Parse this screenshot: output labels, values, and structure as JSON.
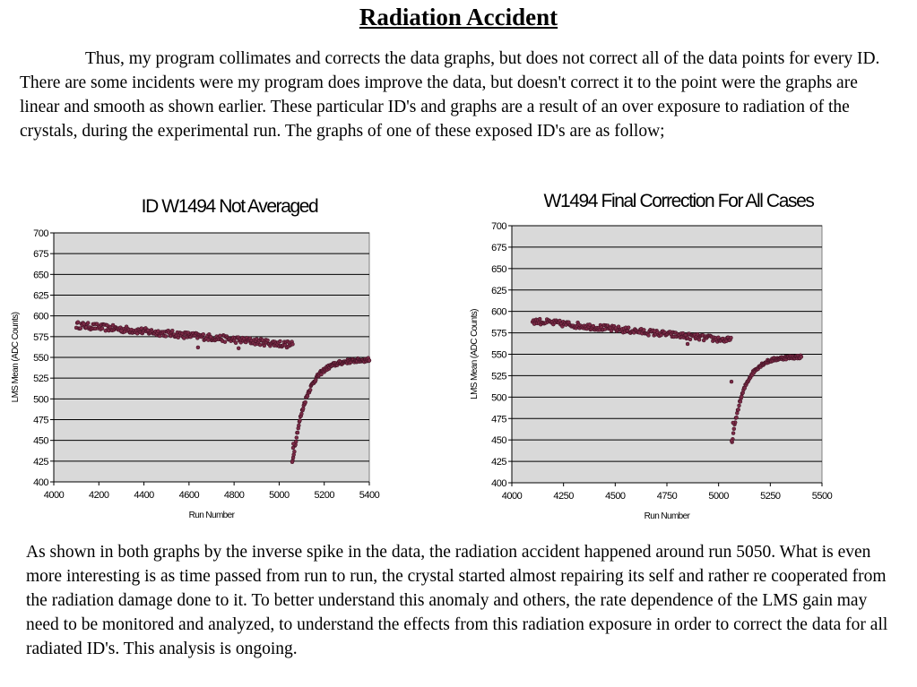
{
  "page": {
    "title": "Radiation Accident",
    "para1": "Thus, my program collimates and corrects the data graphs,  but does not correct all of the data points for every ID.  There are some incidents were my program does improve the data, but doesn't correct it to the point were the graphs are linear and smooth as shown earlier.  These particular ID's and graphs are a result of an over exposure to radiation of the crystals, during the experimental run.  The graphs of one of these exposed ID's are as follow;",
    "para2": "As shown in both graphs by the inverse spike in the data, the radiation accident happened around run 5050.  What is even more interesting is as time passed from run to run, the crystal started almost repairing its self and rather re cooperated from the radiation damage done to it.  To better understand this anomaly and others, the rate dependence of the LMS gain may need to be monitored and analyzed, to understand the effects from this radiation exposure in order to correct the data for all radiated ID's.  This analysis is ongoing."
  },
  "chart_data": [
    {
      "type": "scatter",
      "title": "ID W1494 Not Averaged",
      "xlabel": "Run Number",
      "ylabel": "LMS Mean (ADC Counts)",
      "xlim": [
        4000,
        5400
      ],
      "ylim": [
        400,
        700
      ],
      "xticks": [
        4000,
        4200,
        4400,
        4600,
        4800,
        5000,
        5200,
        5400
      ],
      "yticks": [
        400,
        425,
        450,
        475,
        500,
        525,
        550,
        575,
        600,
        625,
        650,
        675,
        700
      ],
      "grid": "horizontal",
      "background": "#d9d9d9",
      "marker_color": "#7a2a46",
      "segments": [
        {
          "x0": 4100,
          "x1": 5060,
          "y0": 589,
          "y1": 565,
          "n": 260,
          "jitter": 4
        },
        {
          "x0": 5060,
          "x1": 5400,
          "y0": 425,
          "y1": 547,
          "n": 140,
          "curve": "recovery",
          "jitter": 2.5
        }
      ],
      "outliers": [
        [
          5058,
          424
        ],
        [
          5062,
          441
        ],
        [
          5063,
          446
        ],
        [
          4640,
          562
        ],
        [
          4820,
          561
        ],
        [
          4300,
          582
        ]
      ]
    },
    {
      "type": "scatter",
      "title": "W1494 Final Correction For All Cases",
      "xlabel": "Run Number",
      "ylabel": "LMS Mean (ADC Counts)",
      "xlim": [
        4000,
        5500
      ],
      "ylim": [
        400,
        700
      ],
      "xticks": [
        4000,
        4250,
        4500,
        4750,
        5000,
        5250,
        5500
      ],
      "yticks": [
        400,
        425,
        450,
        475,
        500,
        525,
        550,
        575,
        600,
        625,
        650,
        675,
        700
      ],
      "grid": "horizontal",
      "background": "#d9d9d9",
      "marker_color": "#7a2a46",
      "segments": [
        {
          "x0": 4100,
          "x1": 5060,
          "y0": 589,
          "y1": 566,
          "n": 220,
          "jitter": 3.5
        },
        {
          "x0": 5065,
          "x1": 5400,
          "y0": 448,
          "y1": 547,
          "n": 110,
          "curve": "recovery",
          "jitter": 2
        }
      ],
      "outliers": [
        [
          5063,
          449
        ],
        [
          5062,
          518
        ],
        [
          5070,
          470
        ],
        [
          4690,
          577
        ],
        [
          4850,
          562
        ]
      ]
    }
  ]
}
